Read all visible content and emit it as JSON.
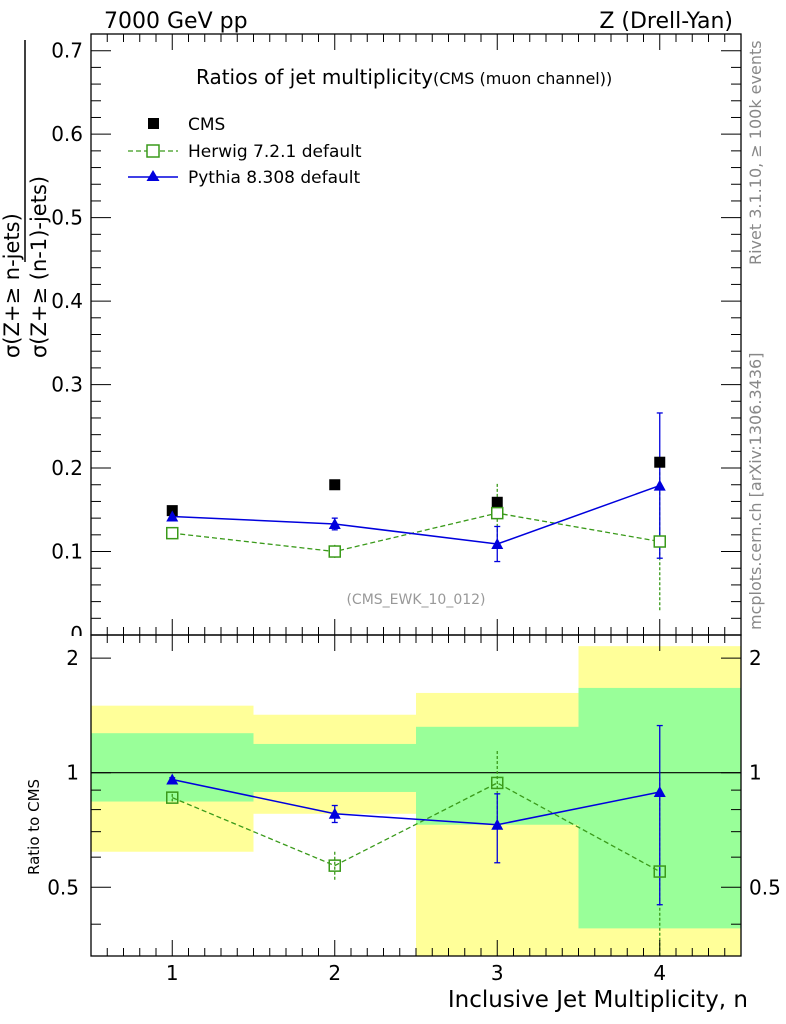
{
  "header": {
    "left": "7000 GeV pp",
    "right": "Z (Drell-Yan)"
  },
  "side_labels": {
    "rivet": "Rivet 3.1.10, ≥ 100k events",
    "mcplots": "mcplots.cern.ch [arXiv:1306.3436]"
  },
  "main_plot": {
    "title": "Ratios of jet multiplicity",
    "subtitle": "(CMS (muon channel))",
    "analysis_id": "(CMS_EWK_10_012)",
    "ylabel_numerator": "σ(Z+≥ n-jets)",
    "ylabel_denominator": "σ(Z+≥ (n-1)-jets)"
  },
  "ratio_plot": {
    "ylabel": "Ratio to CMS"
  },
  "xlabel": "Inclusive Jet Multiplicity, n",
  "colors": {
    "cms": "#000000",
    "herwig": "#3a9a1a",
    "pythia": "#0000dd",
    "band_inner": "#99ff99",
    "band_outer": "#ffff99"
  },
  "chart_data": {
    "type": "scatter",
    "x": [
      1,
      2,
      3,
      4
    ],
    "xlim": [
      0.5,
      4.5
    ],
    "xticks": [
      "1",
      "2",
      "3",
      "4"
    ],
    "main": {
      "ylim": [
        0,
        0.72
      ],
      "yticks": [
        "0.1",
        "0.2",
        "0.3",
        "0.4",
        "0.5",
        "0.6",
        "0.7"
      ],
      "yaxis_bottom_label": "0"
    },
    "ratio": {
      "ylim": [
        0.33,
        2.3
      ],
      "scale": "log",
      "yticks": [
        "0.5",
        "1",
        "2"
      ]
    },
    "series": [
      {
        "name": "CMS",
        "marker": "square-filled",
        "values": [
          0.149,
          0.18,
          0.159,
          0.207
        ]
      },
      {
        "name": "Herwig 7.2.1 default",
        "marker": "square-open",
        "line": "dashed",
        "values": [
          0.122,
          0.1,
          0.146,
          0.112
        ],
        "errors": [
          0.003,
          0.008,
          0.035,
          0.083
        ],
        "ratio": [
          0.86,
          0.57,
          0.94,
          0.55
        ],
        "ratio_errors": [
          0.02,
          0.05,
          0.2,
          0.42
        ]
      },
      {
        "name": "Pythia 8.308 default",
        "marker": "triangle-filled",
        "line": "solid",
        "values": [
          0.142,
          0.133,
          0.109,
          0.179
        ],
        "errors": [
          0.003,
          0.007,
          0.021,
          0.087
        ],
        "ratio": [
          0.96,
          0.78,
          0.73,
          0.89
        ],
        "ratio_errors": [
          0.01,
          0.04,
          0.15,
          0.44
        ]
      }
    ],
    "ratio_bands": {
      "bins": [
        [
          0.5,
          1.5
        ],
        [
          1.5,
          2.5
        ],
        [
          2.5,
          3.5
        ],
        [
          3.5,
          4.5
        ]
      ],
      "inner": [
        [
          0.84,
          1.27
        ],
        [
          0.89,
          1.19
        ],
        [
          0.73,
          1.32
        ],
        [
          0.39,
          1.67
        ]
      ],
      "outer": [
        [
          0.62,
          1.5
        ],
        [
          0.78,
          1.42
        ],
        [
          0.2,
          1.62
        ],
        [
          0.1,
          2.15
        ]
      ]
    }
  }
}
